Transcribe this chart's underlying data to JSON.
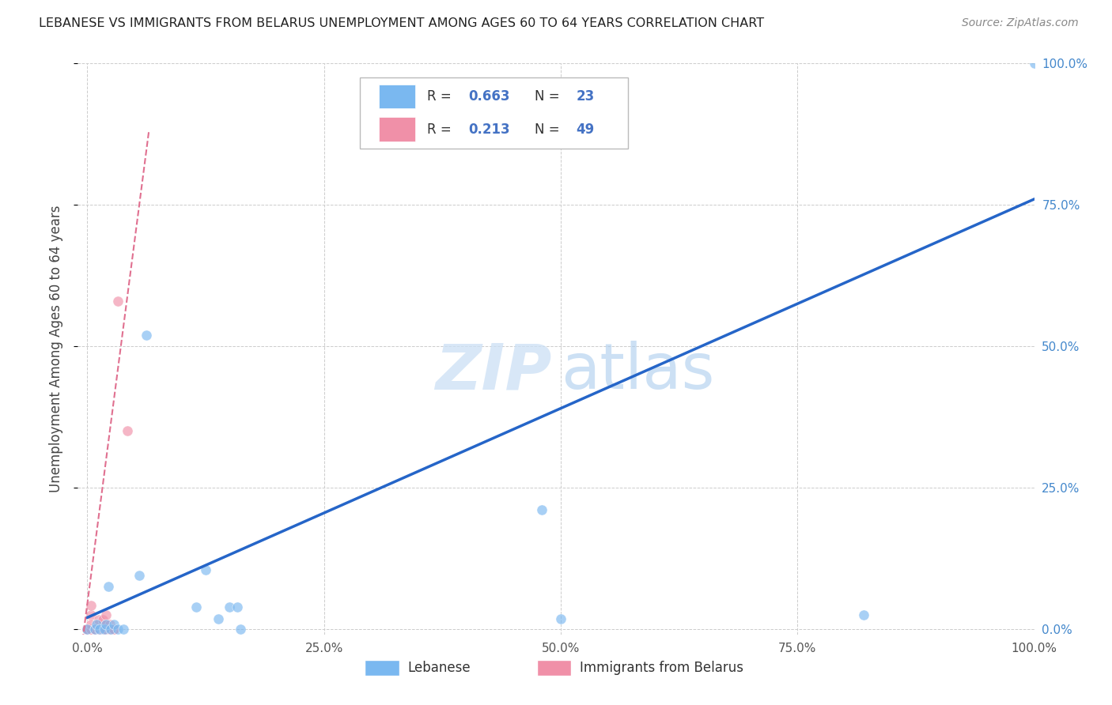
{
  "title": "LEBANESE VS IMMIGRANTS FROM BELARUS UNEMPLOYMENT AMONG AGES 60 TO 64 YEARS CORRELATION CHART",
  "source": "Source: ZipAtlas.com",
  "ylabel": "Unemployment Among Ages 60 to 64 years",
  "watermark_zip": "ZIP",
  "watermark_atlas": "atlas",
  "lebanese_x": [
    0.0,
    0.008,
    0.01,
    0.013,
    0.018,
    0.02,
    0.022,
    0.025,
    0.028,
    0.032,
    0.038,
    0.055,
    0.062,
    0.115,
    0.125,
    0.138,
    0.15,
    0.158,
    0.162,
    0.48,
    0.5,
    0.82,
    1.0
  ],
  "lebanese_y": [
    0.0,
    0.0,
    0.008,
    0.0,
    0.0,
    0.008,
    0.075,
    0.0,
    0.008,
    0.0,
    0.0,
    0.095,
    0.52,
    0.038,
    0.105,
    0.018,
    0.038,
    0.038,
    0.0,
    0.21,
    0.018,
    0.025,
    1.0
  ],
  "belarus_x": [
    0.0,
    0.0,
    0.0,
    0.0,
    0.0,
    0.0,
    0.0,
    0.0,
    0.0,
    0.0,
    0.0,
    0.0,
    0.0,
    0.0,
    0.0,
    0.0,
    0.0,
    0.0,
    0.0,
    0.0,
    0.004,
    0.004,
    0.004,
    0.004,
    0.004,
    0.008,
    0.008,
    0.008,
    0.008,
    0.012,
    0.012,
    0.012,
    0.012,
    0.016,
    0.016,
    0.016,
    0.016,
    0.016,
    0.02,
    0.02,
    0.02,
    0.02,
    0.024,
    0.024,
    0.024,
    0.028,
    0.028,
    0.032,
    0.042
  ],
  "belarus_y": [
    0.0,
    0.0,
    0.0,
    0.0,
    0.0,
    0.0,
    0.0,
    0.0,
    0.0,
    0.0,
    0.0,
    0.0,
    0.0,
    0.0,
    0.0,
    0.0,
    0.0,
    0.0,
    0.0,
    0.0,
    0.0,
    0.0,
    0.025,
    0.042,
    0.008,
    0.0,
    0.0,
    0.0,
    0.0,
    0.0,
    0.0,
    0.008,
    0.016,
    0.0,
    0.0,
    0.0,
    0.008,
    0.016,
    0.0,
    0.0,
    0.008,
    0.025,
    0.0,
    0.0,
    0.008,
    0.0,
    0.0,
    0.58,
    0.35
  ],
  "blue_line_x": [
    0.0,
    1.0
  ],
  "blue_line_y": [
    0.02,
    0.76
  ],
  "pink_line_x": [
    -0.005,
    0.065
  ],
  "pink_line_y": [
    -0.02,
    0.88
  ],
  "xlim": [
    -0.01,
    1.0
  ],
  "ylim": [
    -0.01,
    1.0
  ],
  "xticks": [
    0.0,
    0.25,
    0.5,
    0.75,
    1.0
  ],
  "xticklabels": [
    "0.0%",
    "25.0%",
    "50.0%",
    "75.0%",
    "100.0%"
  ],
  "yticks": [
    0.0,
    0.25,
    0.5,
    0.75,
    1.0
  ],
  "right_yticklabels": [
    "0.0%",
    "25.0%",
    "50.0%",
    "75.0%",
    "100.0%"
  ],
  "grid_color": "#cccccc",
  "blue_color": "#7ab8f0",
  "blue_line_color": "#2565c8",
  "pink_color": "#f090a8",
  "pink_line_color": "#e07090",
  "title_color": "#222222",
  "source_color": "#888888",
  "right_ytick_color": "#4488cc",
  "background_color": "#ffffff",
  "marker_size": 9,
  "scatter_alpha": 0.65,
  "r_blue": "0.663",
  "n_blue": "23",
  "r_pink": "0.213",
  "n_pink": "49"
}
